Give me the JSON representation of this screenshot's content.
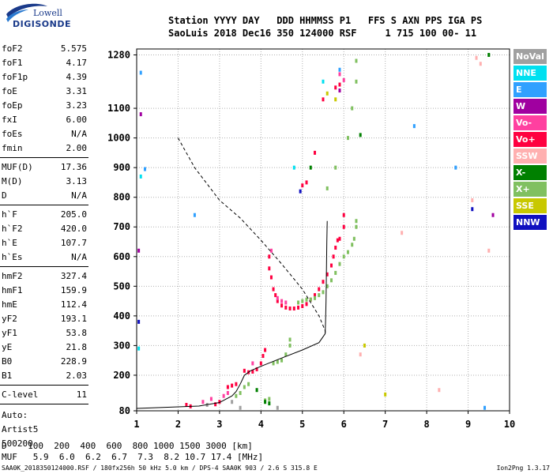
{
  "logo": {
    "line1": "Lowell",
    "line2": "DIGISONDE"
  },
  "header": {
    "line1": "Station YYYY DAY   DDD HHMMSS P1   FFS S AXN PPS IGA PS",
    "line2": "SaoLuis 2018 Dec16 350 124000 RSF     1 715 100 00- 11"
  },
  "params": {
    "group1": [
      {
        "label": "foF2",
        "value": "5.575"
      },
      {
        "label": "foF1",
        "value": "4.17"
      },
      {
        "label": "foF1p",
        "value": "4.39"
      },
      {
        "label": "foE",
        "value": "3.31"
      },
      {
        "label": "foEp",
        "value": "3.23"
      },
      {
        "label": "fxI",
        "value": "6.00"
      },
      {
        "label": "foEs",
        "value": "N/A"
      },
      {
        "label": "fmin",
        "value": "2.00"
      }
    ],
    "group2": [
      {
        "label": "MUF(D)",
        "value": "17.36"
      },
      {
        "label": "M(D)",
        "value": "3.13"
      },
      {
        "label": "D",
        "value": "N/A"
      }
    ],
    "group3": [
      {
        "label": "h`F",
        "value": "205.0"
      },
      {
        "label": "h`F2",
        "value": "420.0"
      },
      {
        "label": "h`E",
        "value": "107.7"
      },
      {
        "label": "h`Es",
        "value": "N/A"
      }
    ],
    "group4": [
      {
        "label": "hmF2",
        "value": "327.4"
      },
      {
        "label": "hmF1",
        "value": "159.9"
      },
      {
        "label": "hmE",
        "value": "112.4"
      },
      {
        "label": "yF2",
        "value": "193.1"
      },
      {
        "label": "yF1",
        "value": "53.8"
      },
      {
        "label": "yE",
        "value": "21.8"
      },
      {
        "label": "B0",
        "value": "228.9"
      },
      {
        "label": "B1",
        "value": "2.03"
      }
    ],
    "group5": [
      {
        "label": "C-level",
        "value": "11"
      }
    ]
  },
  "auto": {
    "line1": "Auto:",
    "line2": "Artist5",
    "line3": "500200"
  },
  "legend": [
    {
      "label": "NoVal",
      "color": "#a0a0a0"
    },
    {
      "label": "NNE",
      "color": "#00e0f0"
    },
    {
      "label": "E",
      "color": "#30a0ff"
    },
    {
      "label": "W",
      "color": "#a000a0"
    },
    {
      "label": "Vo-",
      "color": "#ff40a0"
    },
    {
      "label": "Vo+",
      "color": "#ff0040"
    },
    {
      "label": "SSW",
      "color": "#ffb0b0"
    },
    {
      "label": "X-",
      "color": "#008000"
    },
    {
      "label": "X+",
      "color": "#80c060"
    },
    {
      "label": "SSE",
      "color": "#c8c800"
    },
    {
      "label": "NNW",
      "color": "#1010c0"
    }
  ],
  "dmuf": {
    "d_line": "D    100  200  400  600  800 1000 1500 3000 [km]",
    "muf_line": "MUF   5.9  6.0  6.2  6.7  7.3  8.2 10.7 17.4 [MHz]"
  },
  "footer": {
    "left": "SAA0K_2018350124000.RSF / 180fx256h 50 kHz 5.0 km / DPS-4 SAA0K 903 / 2.6 S 315.8 E",
    "right": "Ion2Png 1.3.17"
  },
  "chart_data": {
    "type": "scatter",
    "xlim": [
      1,
      10
    ],
    "ylim": [
      80,
      1300
    ],
    "x_ticks": [
      1,
      2,
      3,
      4,
      5,
      6,
      7,
      8,
      9,
      10
    ],
    "y_ticks": [
      80,
      200,
      300,
      400,
      500,
      600,
      700,
      800,
      900,
      1000,
      1100,
      1280
    ],
    "grid": true,
    "legend_position": "right",
    "profile_line": [
      [
        1,
        88
      ],
      [
        2.5,
        96
      ],
      [
        3,
        108
      ],
      [
        3.3,
        130
      ],
      [
        3.4,
        145
      ],
      [
        3.5,
        170
      ],
      [
        3.6,
        200
      ],
      [
        3.75,
        215
      ],
      [
        4,
        230
      ],
      [
        4.5,
        258
      ],
      [
        5,
        285
      ],
      [
        5.4,
        310
      ],
      [
        5.55,
        340
      ],
      [
        5.56,
        380
      ],
      [
        5.57,
        450
      ],
      [
        5.58,
        550
      ],
      [
        5.59,
        650
      ],
      [
        5.6,
        720
      ]
    ],
    "extrapolated_line": [
      [
        2,
        1000
      ],
      [
        2.4,
        900
      ],
      [
        3,
        790
      ],
      [
        3.5,
        730
      ],
      [
        4,
        655
      ],
      [
        4.5,
        575
      ],
      [
        5,
        490
      ],
      [
        5.4,
        400
      ],
      [
        5.55,
        350
      ],
      [
        5.56,
        335
      ]
    ],
    "series": [
      {
        "name": "Vo+",
        "color": "#ff0040",
        "points": [
          [
            4.2,
            600
          ],
          [
            4.2,
            560
          ],
          [
            4.25,
            530
          ],
          [
            4.3,
            490
          ],
          [
            4.35,
            470
          ],
          [
            4.4,
            450
          ],
          [
            4.5,
            435
          ],
          [
            4.6,
            428
          ],
          [
            4.7,
            425
          ],
          [
            4.8,
            425
          ],
          [
            4.9,
            428
          ],
          [
            5.0,
            433
          ],
          [
            5.1,
            440
          ],
          [
            5.2,
            455
          ],
          [
            5.3,
            470
          ],
          [
            5.4,
            490
          ],
          [
            5.5,
            515
          ],
          [
            5.6,
            540
          ],
          [
            5.7,
            570
          ],
          [
            5.75,
            600
          ],
          [
            5.8,
            630
          ],
          [
            5.85,
            655
          ],
          [
            5.9,
            660
          ],
          [
            6.0,
            700
          ],
          [
            6.0,
            740
          ],
          [
            3.6,
            215
          ],
          [
            3.7,
            210
          ],
          [
            3.8,
            212
          ],
          [
            3.9,
            220
          ],
          [
            4.0,
            240
          ],
          [
            4.05,
            265
          ],
          [
            4.1,
            285
          ],
          [
            3.2,
            160
          ],
          [
            3.3,
            165
          ],
          [
            3.4,
            170
          ],
          [
            2.2,
            100
          ],
          [
            2.3,
            95
          ],
          [
            2.9,
            102
          ],
          [
            3.0,
            110
          ],
          [
            5.0,
            840
          ],
          [
            5.1,
            850
          ],
          [
            5.3,
            950
          ],
          [
            5.5,
            1130
          ],
          [
            5.8,
            1170
          ],
          [
            5.9,
            1180
          ]
        ]
      },
      {
        "name": "X+",
        "color": "#80c060",
        "points": [
          [
            4.9,
            445
          ],
          [
            5.0,
            450
          ],
          [
            5.1,
            455
          ],
          [
            5.2,
            455
          ],
          [
            5.3,
            460
          ],
          [
            5.4,
            470
          ],
          [
            5.5,
            480
          ],
          [
            5.6,
            500
          ],
          [
            5.7,
            520
          ],
          [
            5.8,
            545
          ],
          [
            5.9,
            575
          ],
          [
            6.0,
            600
          ],
          [
            6.1,
            615
          ],
          [
            6.2,
            640
          ],
          [
            6.25,
            660
          ],
          [
            6.3,
            700
          ],
          [
            6.3,
            720
          ],
          [
            4.3,
            240
          ],
          [
            4.4,
            245
          ],
          [
            4.5,
            250
          ],
          [
            4.6,
            270
          ],
          [
            4.7,
            300
          ],
          [
            4.7,
            320
          ],
          [
            3.4,
            130
          ],
          [
            3.5,
            140
          ],
          [
            3.6,
            160
          ],
          [
            3.7,
            170
          ],
          [
            6.1,
            1000
          ],
          [
            6.2,
            1100
          ],
          [
            6.3,
            1190
          ],
          [
            6.3,
            1260
          ],
          [
            5.6,
            830
          ],
          [
            5.8,
            900
          ],
          [
            4.1,
            115
          ],
          [
            4.2,
            120
          ]
        ]
      },
      {
        "name": "Vo-",
        "color": "#ff40a0",
        "points": [
          [
            4.4,
            460
          ],
          [
            4.5,
            450
          ],
          [
            4.6,
            445
          ],
          [
            4.25,
            620
          ],
          [
            2.6,
            110
          ],
          [
            2.8,
            120
          ],
          [
            3.1,
            130
          ],
          [
            3.2,
            140
          ],
          [
            3.8,
            240
          ],
          [
            5.9,
            1215
          ],
          [
            6.0,
            1195
          ]
        ]
      },
      {
        "name": "X-",
        "color": "#008000",
        "points": [
          [
            4.1,
            110
          ],
          [
            4.2,
            105
          ],
          [
            3.9,
            150
          ],
          [
            6.4,
            1010
          ],
          [
            9.5,
            1280
          ],
          [
            5.2,
            900
          ]
        ]
      },
      {
        "name": "W",
        "color": "#a000a0",
        "points": [
          [
            1.1,
            1080
          ],
          [
            1.05,
            620
          ],
          [
            5.9,
            1160
          ],
          [
            9.6,
            740
          ]
        ]
      },
      {
        "name": "E",
        "color": "#30a0ff",
        "points": [
          [
            1.1,
            1220
          ],
          [
            2.4,
            740
          ],
          [
            1.2,
            895
          ],
          [
            7.7,
            1040
          ],
          [
            8.7,
            900
          ],
          [
            9.4,
            90
          ],
          [
            5.9,
            1230
          ]
        ]
      },
      {
        "name": "NNE",
        "color": "#00e0f0",
        "points": [
          [
            1.05,
            290
          ],
          [
            1.1,
            870
          ],
          [
            5.5,
            1190
          ],
          [
            4.8,
            900
          ]
        ]
      },
      {
        "name": "SSE",
        "color": "#c8c800",
        "points": [
          [
            5.6,
            1150
          ],
          [
            6.5,
            300
          ],
          [
            7.0,
            135
          ],
          [
            5.8,
            1130
          ]
        ]
      },
      {
        "name": "SSW",
        "color": "#ffb0b0",
        "points": [
          [
            9.1,
            790
          ],
          [
            9.2,
            1270
          ],
          [
            9.3,
            1250
          ],
          [
            7.4,
            680
          ],
          [
            8.3,
            150
          ],
          [
            9.5,
            620
          ],
          [
            6.4,
            270
          ]
        ]
      },
      {
        "name": "NNW",
        "color": "#1010c0",
        "points": [
          [
            1.05,
            380
          ],
          [
            9.1,
            760
          ],
          [
            4.95,
            820
          ]
        ]
      },
      {
        "name": "NoVal",
        "color": "#a0a0a0",
        "points": [
          [
            3.3,
            110
          ],
          [
            3.5,
            90
          ],
          [
            2.7,
            100
          ],
          [
            4.4,
            90
          ]
        ]
      }
    ]
  }
}
